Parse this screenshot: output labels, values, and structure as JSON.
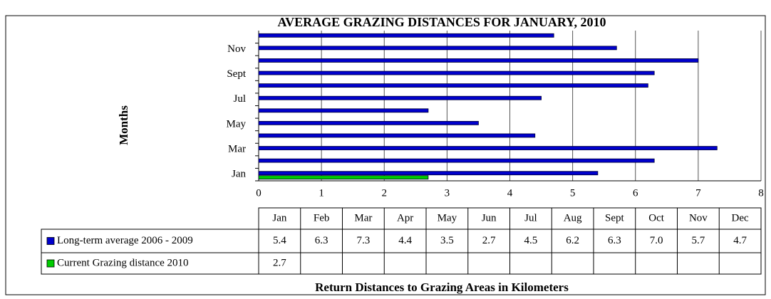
{
  "chart_data": {
    "type": "barh",
    "title": "AVERAGE GRAZING DISTANCES FOR JANUARY, 2010",
    "y_label": "Months",
    "x_label": "Return Distances to Grazing Areas in Kilometers",
    "categories": [
      "Jan",
      "Feb",
      "Mar",
      "Apr",
      "May",
      "Jun",
      "Jul",
      "Aug",
      "Sept",
      "Oct",
      "Nov",
      "Dec"
    ],
    "series": [
      {
        "name": "Long-term average 2006 - 2009",
        "color": "#0000cc",
        "values": [
          5.4,
          6.3,
          7.3,
          4.4,
          3.5,
          2.7,
          4.5,
          6.2,
          6.3,
          7.0,
          5.7,
          4.7
        ],
        "value_labels": [
          "5.4",
          "6.3",
          "7.3",
          "4.4",
          "3.5",
          "2.7",
          "4.5",
          "6.2",
          "6.3",
          "7.0",
          "5.7",
          "4.7"
        ]
      },
      {
        "name": "Current Grazing distance 2010",
        "color": "#00cc00",
        "values": [
          2.7,
          null,
          null,
          null,
          null,
          null,
          null,
          null,
          null,
          null,
          null,
          null
        ]
      }
    ],
    "xlim": [
      0,
      8
    ],
    "xticks": [
      0,
      1,
      2,
      3,
      4,
      5,
      6,
      7,
      8
    ],
    "grid": true
  }
}
